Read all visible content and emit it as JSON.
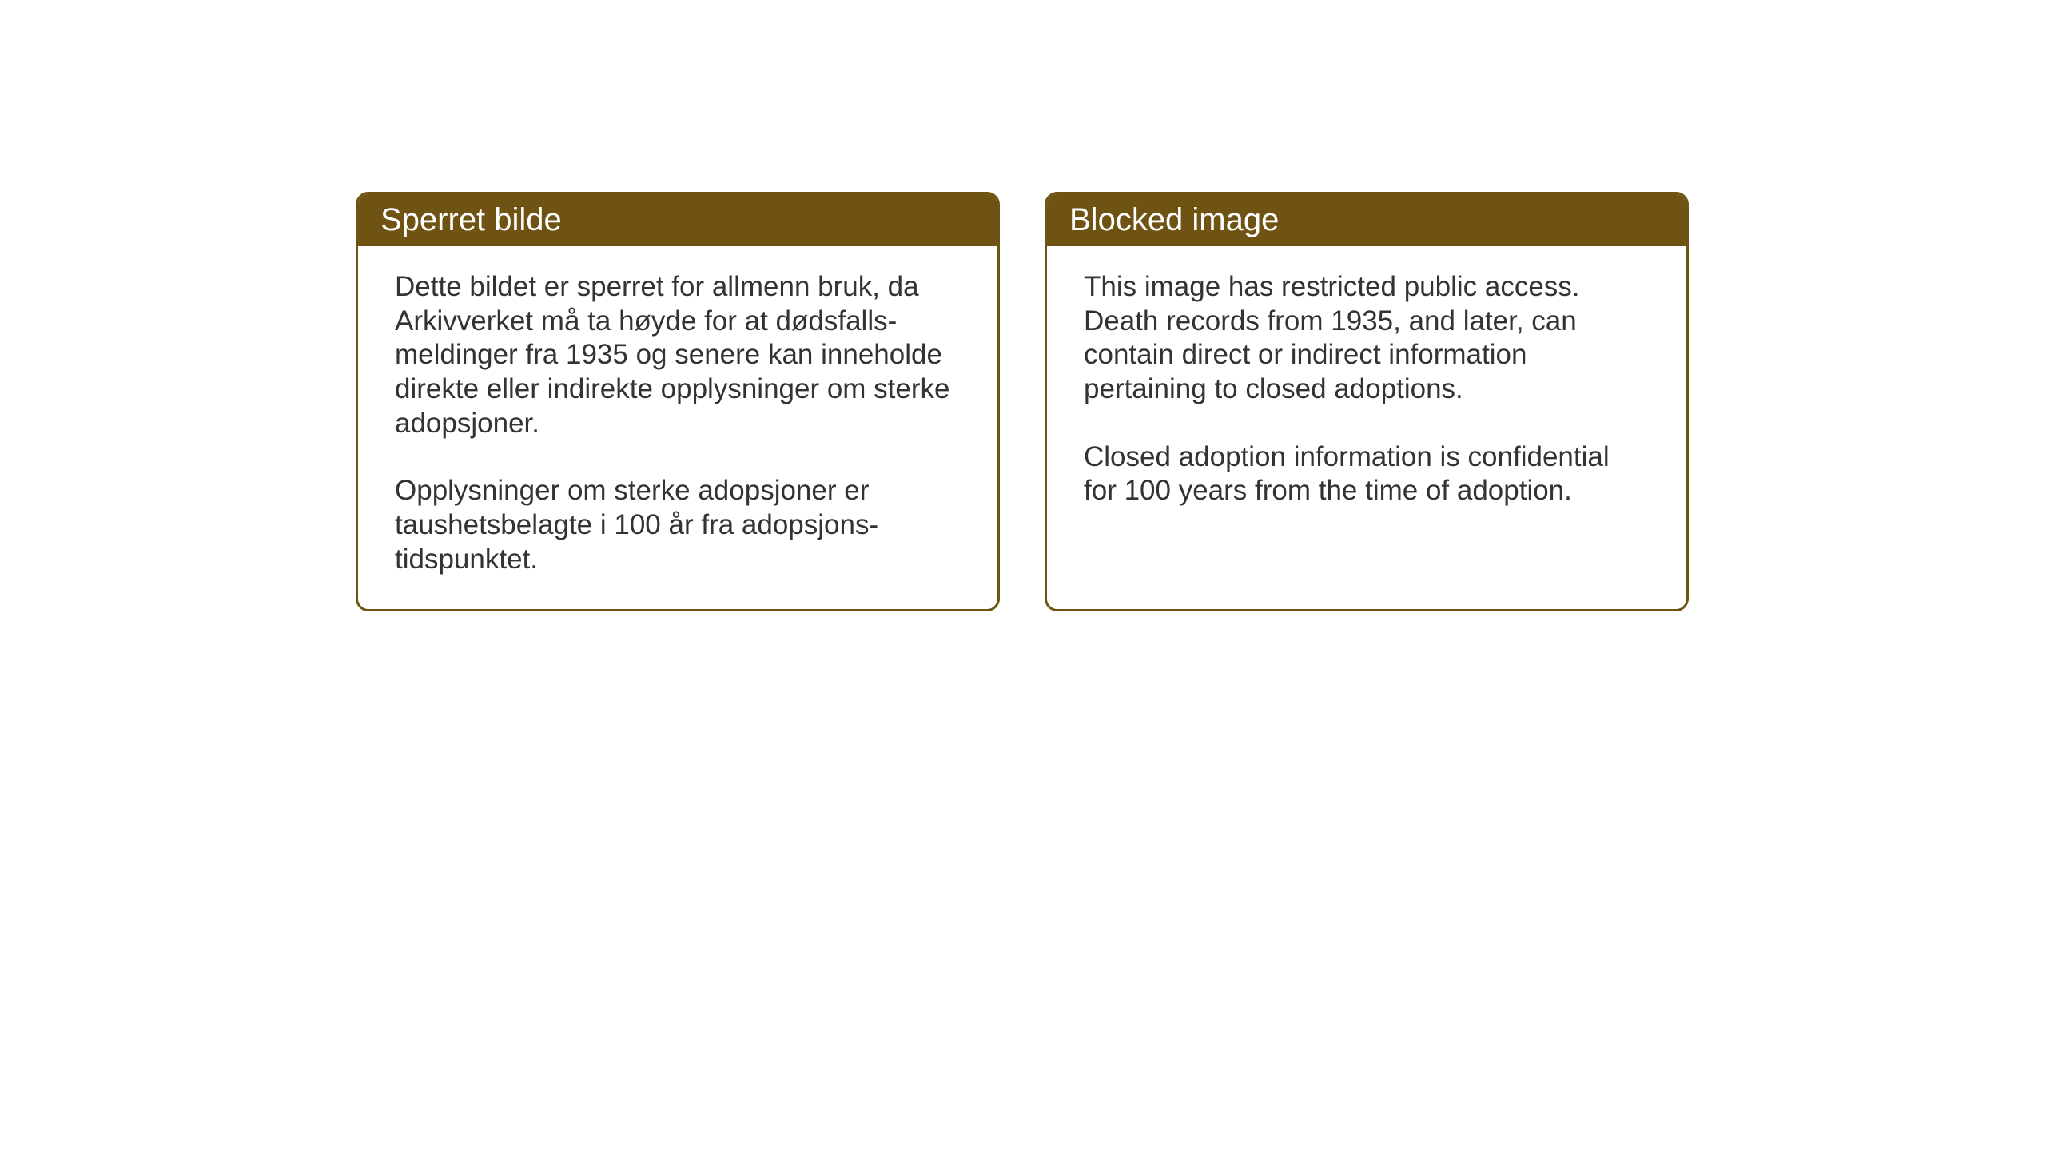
{
  "layout": {
    "background_color": "#ffffff",
    "card_border_color": "#6e5312",
    "header_background_color": "#6e5312",
    "header_text_color": "#ffffff",
    "body_text_color": "#333333",
    "card_border_radius": 16,
    "card_border_width": 3,
    "header_fontsize": 40,
    "body_fontsize": 35
  },
  "cards": {
    "norwegian": {
      "title": "Sperret bilde",
      "paragraph1": "Dette bildet er sperret for allmenn bruk, da Arkivverket må ta høyde for at dødsfalls-meldinger fra 1935 og senere kan inneholde direkte eller indirekte opplysninger om sterke adopsjoner.",
      "paragraph2": "Opplysninger om sterke adopsjoner er taushetsbelagte i 100 år fra adopsjons-tidspunktet."
    },
    "english": {
      "title": "Blocked image",
      "paragraph1": "This image has restricted public access. Death records from 1935, and later, can contain direct or indirect information pertaining to closed adoptions.",
      "paragraph2": "Closed adoption information is confidential for 100 years from the time of adoption."
    }
  }
}
